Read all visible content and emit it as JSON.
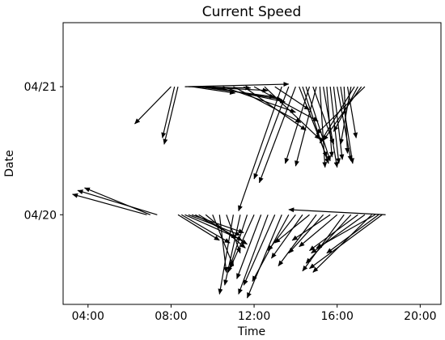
{
  "chart_data": {
    "type": "quiver",
    "title": "Current Speed",
    "xlabel": "Time",
    "ylabel": "Date",
    "x_ticks": [
      "04:00",
      "08:00",
      "12:00",
      "16:00",
      "20:00"
    ],
    "y_ticks": [
      "04/20",
      "04/21"
    ],
    "grid": false,
    "rows": [
      {
        "date": "04/21",
        "arrows": [
          {
            "time": "08:00",
            "to_time": "06:15",
            "to_date_offset": -0.29
          },
          {
            "time": "08:10",
            "to_time": "07:35",
            "to_date_offset": -0.4
          },
          {
            "time": "08:20",
            "to_time": "07:40",
            "to_date_offset": -0.45
          },
          {
            "time": "08:40",
            "to_time": "13:40",
            "to_date_offset": 0.02
          },
          {
            "time": "08:50",
            "to_time": "11:50",
            "to_date_offset": -0.01
          },
          {
            "time": "09:00",
            "to_time": "11:05",
            "to_date_offset": -0.05
          },
          {
            "time": "09:10",
            "to_time": "12:40",
            "to_date_offset": -0.03
          },
          {
            "time": "09:20",
            "to_time": "13:00",
            "to_date_offset": -0.08
          },
          {
            "time": "09:40",
            "to_time": "13:20",
            "to_date_offset": -0.1
          },
          {
            "time": "10:00",
            "to_time": "13:30",
            "to_date_offset": -0.12
          },
          {
            "time": "10:30",
            "to_time": "14:00",
            "to_date_offset": -0.2
          },
          {
            "time": "11:00",
            "to_time": "14:15",
            "to_date_offset": -0.28
          },
          {
            "time": "11:30",
            "to_time": "14:30",
            "to_date_offset": -0.34
          },
          {
            "time": "12:00",
            "to_time": "15:05",
            "to_date_offset": -0.27
          },
          {
            "time": "12:30",
            "to_time": "15:10",
            "to_date_offset": -0.41
          },
          {
            "time": "13:00",
            "to_time": "14:40",
            "to_date_offset": -0.18
          },
          {
            "time": "13:20",
            "to_time": "11:15",
            "to_date_offset": -0.97
          },
          {
            "time": "13:40",
            "to_time": "12:00",
            "to_date_offset": -0.72
          },
          {
            "time": "14:00",
            "to_time": "12:15",
            "to_date_offset": -0.75
          },
          {
            "time": "14:10",
            "to_time": "15:30",
            "to_date_offset": -0.55
          },
          {
            "time": "14:20",
            "to_time": "15:35",
            "to_date_offset": -0.6
          },
          {
            "time": "14:30",
            "to_time": "15:40",
            "to_date_offset": -0.58
          },
          {
            "time": "14:40",
            "to_time": "13:30",
            "to_date_offset": -0.6
          },
          {
            "time": "14:50",
            "to_time": "15:50",
            "to_date_offset": -0.45
          },
          {
            "time": "15:00",
            "to_time": "14:00",
            "to_date_offset": -0.62
          },
          {
            "time": "15:10",
            "to_time": "15:25",
            "to_date_offset": -0.63
          },
          {
            "time": "15:20",
            "to_time": "16:00",
            "to_date_offset": -0.63
          },
          {
            "time": "15:30",
            "to_time": "15:45",
            "to_date_offset": -0.55
          },
          {
            "time": "15:40",
            "to_time": "16:05",
            "to_date_offset": -0.6
          },
          {
            "time": "15:50",
            "to_time": "16:15",
            "to_date_offset": -0.57
          },
          {
            "time": "16:00",
            "to_time": "16:40",
            "to_date_offset": -0.58
          },
          {
            "time": "16:10",
            "to_time": "16:45",
            "to_date_offset": -0.6
          },
          {
            "time": "16:20",
            "to_time": "16:30",
            "to_date_offset": -0.52
          },
          {
            "time": "16:30",
            "to_time": "16:55",
            "to_date_offset": -0.4
          },
          {
            "time": "16:40",
            "to_time": "16:10",
            "to_date_offset": -0.45
          },
          {
            "time": "16:50",
            "to_time": "15:10",
            "to_date_offset": -0.44
          },
          {
            "time": "17:00",
            "to_time": "15:50",
            "to_date_offset": -0.35
          },
          {
            "time": "17:10",
            "to_time": "15:20",
            "to_date_offset": -0.42
          },
          {
            "time": "17:20",
            "to_time": "15:00",
            "to_date_offset": -0.37
          }
        ]
      },
      {
        "date": "04/20",
        "arrows": [
          {
            "time": "07:20",
            "to_time": "03:30",
            "to_date_offset": 0.19
          },
          {
            "time": "07:00",
            "to_time": "03:50",
            "to_date_offset": 0.21
          },
          {
            "time": "06:50",
            "to_time": "03:15",
            "to_date_offset": 0.16
          },
          {
            "time": "08:20",
            "to_time": "10:20",
            "to_date_offset": -0.2
          },
          {
            "time": "08:30",
            "to_time": "10:50",
            "to_date_offset": -0.22
          },
          {
            "time": "08:40",
            "to_time": "11:10",
            "to_date_offset": -0.18
          },
          {
            "time": "08:50",
            "to_time": "11:20",
            "to_date_offset": -0.16
          },
          {
            "time": "09:00",
            "to_time": "11:30",
            "to_date_offset": -0.14
          },
          {
            "time": "09:10",
            "to_time": "11:25",
            "to_date_offset": -0.2
          },
          {
            "time": "09:20",
            "to_time": "11:40",
            "to_date_offset": -0.23
          },
          {
            "time": "09:40",
            "to_time": "11:35",
            "to_date_offset": -0.26
          },
          {
            "time": "10:00",
            "to_time": "11:00",
            "to_date_offset": -0.4
          },
          {
            "time": "10:20",
            "to_time": "10:40",
            "to_date_offset": -0.45
          },
          {
            "time": "10:40",
            "to_time": "11:20",
            "to_date_offset": -0.3
          },
          {
            "time": "11:00",
            "to_time": "10:20",
            "to_date_offset": -0.62
          },
          {
            "time": "11:20",
            "to_time": "10:35",
            "to_date_offset": -0.55
          },
          {
            "time": "11:40",
            "to_time": "10:45",
            "to_date_offset": -0.45
          },
          {
            "time": "12:00",
            "to_time": "10:50",
            "to_date_offset": -0.42
          },
          {
            "time": "12:20",
            "to_time": "11:10",
            "to_date_offset": -0.5
          },
          {
            "time": "12:40",
            "to_time": "11:15",
            "to_date_offset": -0.62
          },
          {
            "time": "13:00",
            "to_time": "11:30",
            "to_date_offset": -0.55
          },
          {
            "time": "13:20",
            "to_time": "11:40",
            "to_date_offset": -0.65
          },
          {
            "time": "13:40",
            "to_time": "11:55",
            "to_date_offset": -0.52
          },
          {
            "time": "14:00",
            "to_time": "12:40",
            "to_date_offset": -0.28
          },
          {
            "time": "14:20",
            "to_time": "12:50",
            "to_date_offset": -0.34
          },
          {
            "time": "14:40",
            "to_time": "13:00",
            "to_date_offset": -0.22
          },
          {
            "time": "15:00",
            "to_time": "13:10",
            "to_date_offset": -0.4
          },
          {
            "time": "15:20",
            "to_time": "13:40",
            "to_date_offset": -0.3
          },
          {
            "time": "15:40",
            "to_time": "13:50",
            "to_date_offset": -0.2
          },
          {
            "time": "16:00",
            "to_time": "14:10",
            "to_date_offset": -0.25
          },
          {
            "time": "16:20",
            "to_time": "14:20",
            "to_date_offset": -0.44
          },
          {
            "time": "16:40",
            "to_time": "14:30",
            "to_date_offset": -0.38
          },
          {
            "time": "17:00",
            "to_time": "14:40",
            "to_date_offset": -0.28
          },
          {
            "time": "17:20",
            "to_time": "14:45",
            "to_date_offset": -0.3
          },
          {
            "time": "17:40",
            "to_time": "14:50",
            "to_date_offset": -0.45
          },
          {
            "time": "18:00",
            "to_time": "15:30",
            "to_date_offset": -0.3
          },
          {
            "time": "18:10",
            "to_time": "14:40",
            "to_date_offset": -0.42
          },
          {
            "time": "18:20",
            "to_time": "13:40",
            "to_date_offset": 0.04
          },
          {
            "time": "17:50",
            "to_time": "15:00",
            "to_date_offset": -0.26
          }
        ]
      }
    ]
  }
}
